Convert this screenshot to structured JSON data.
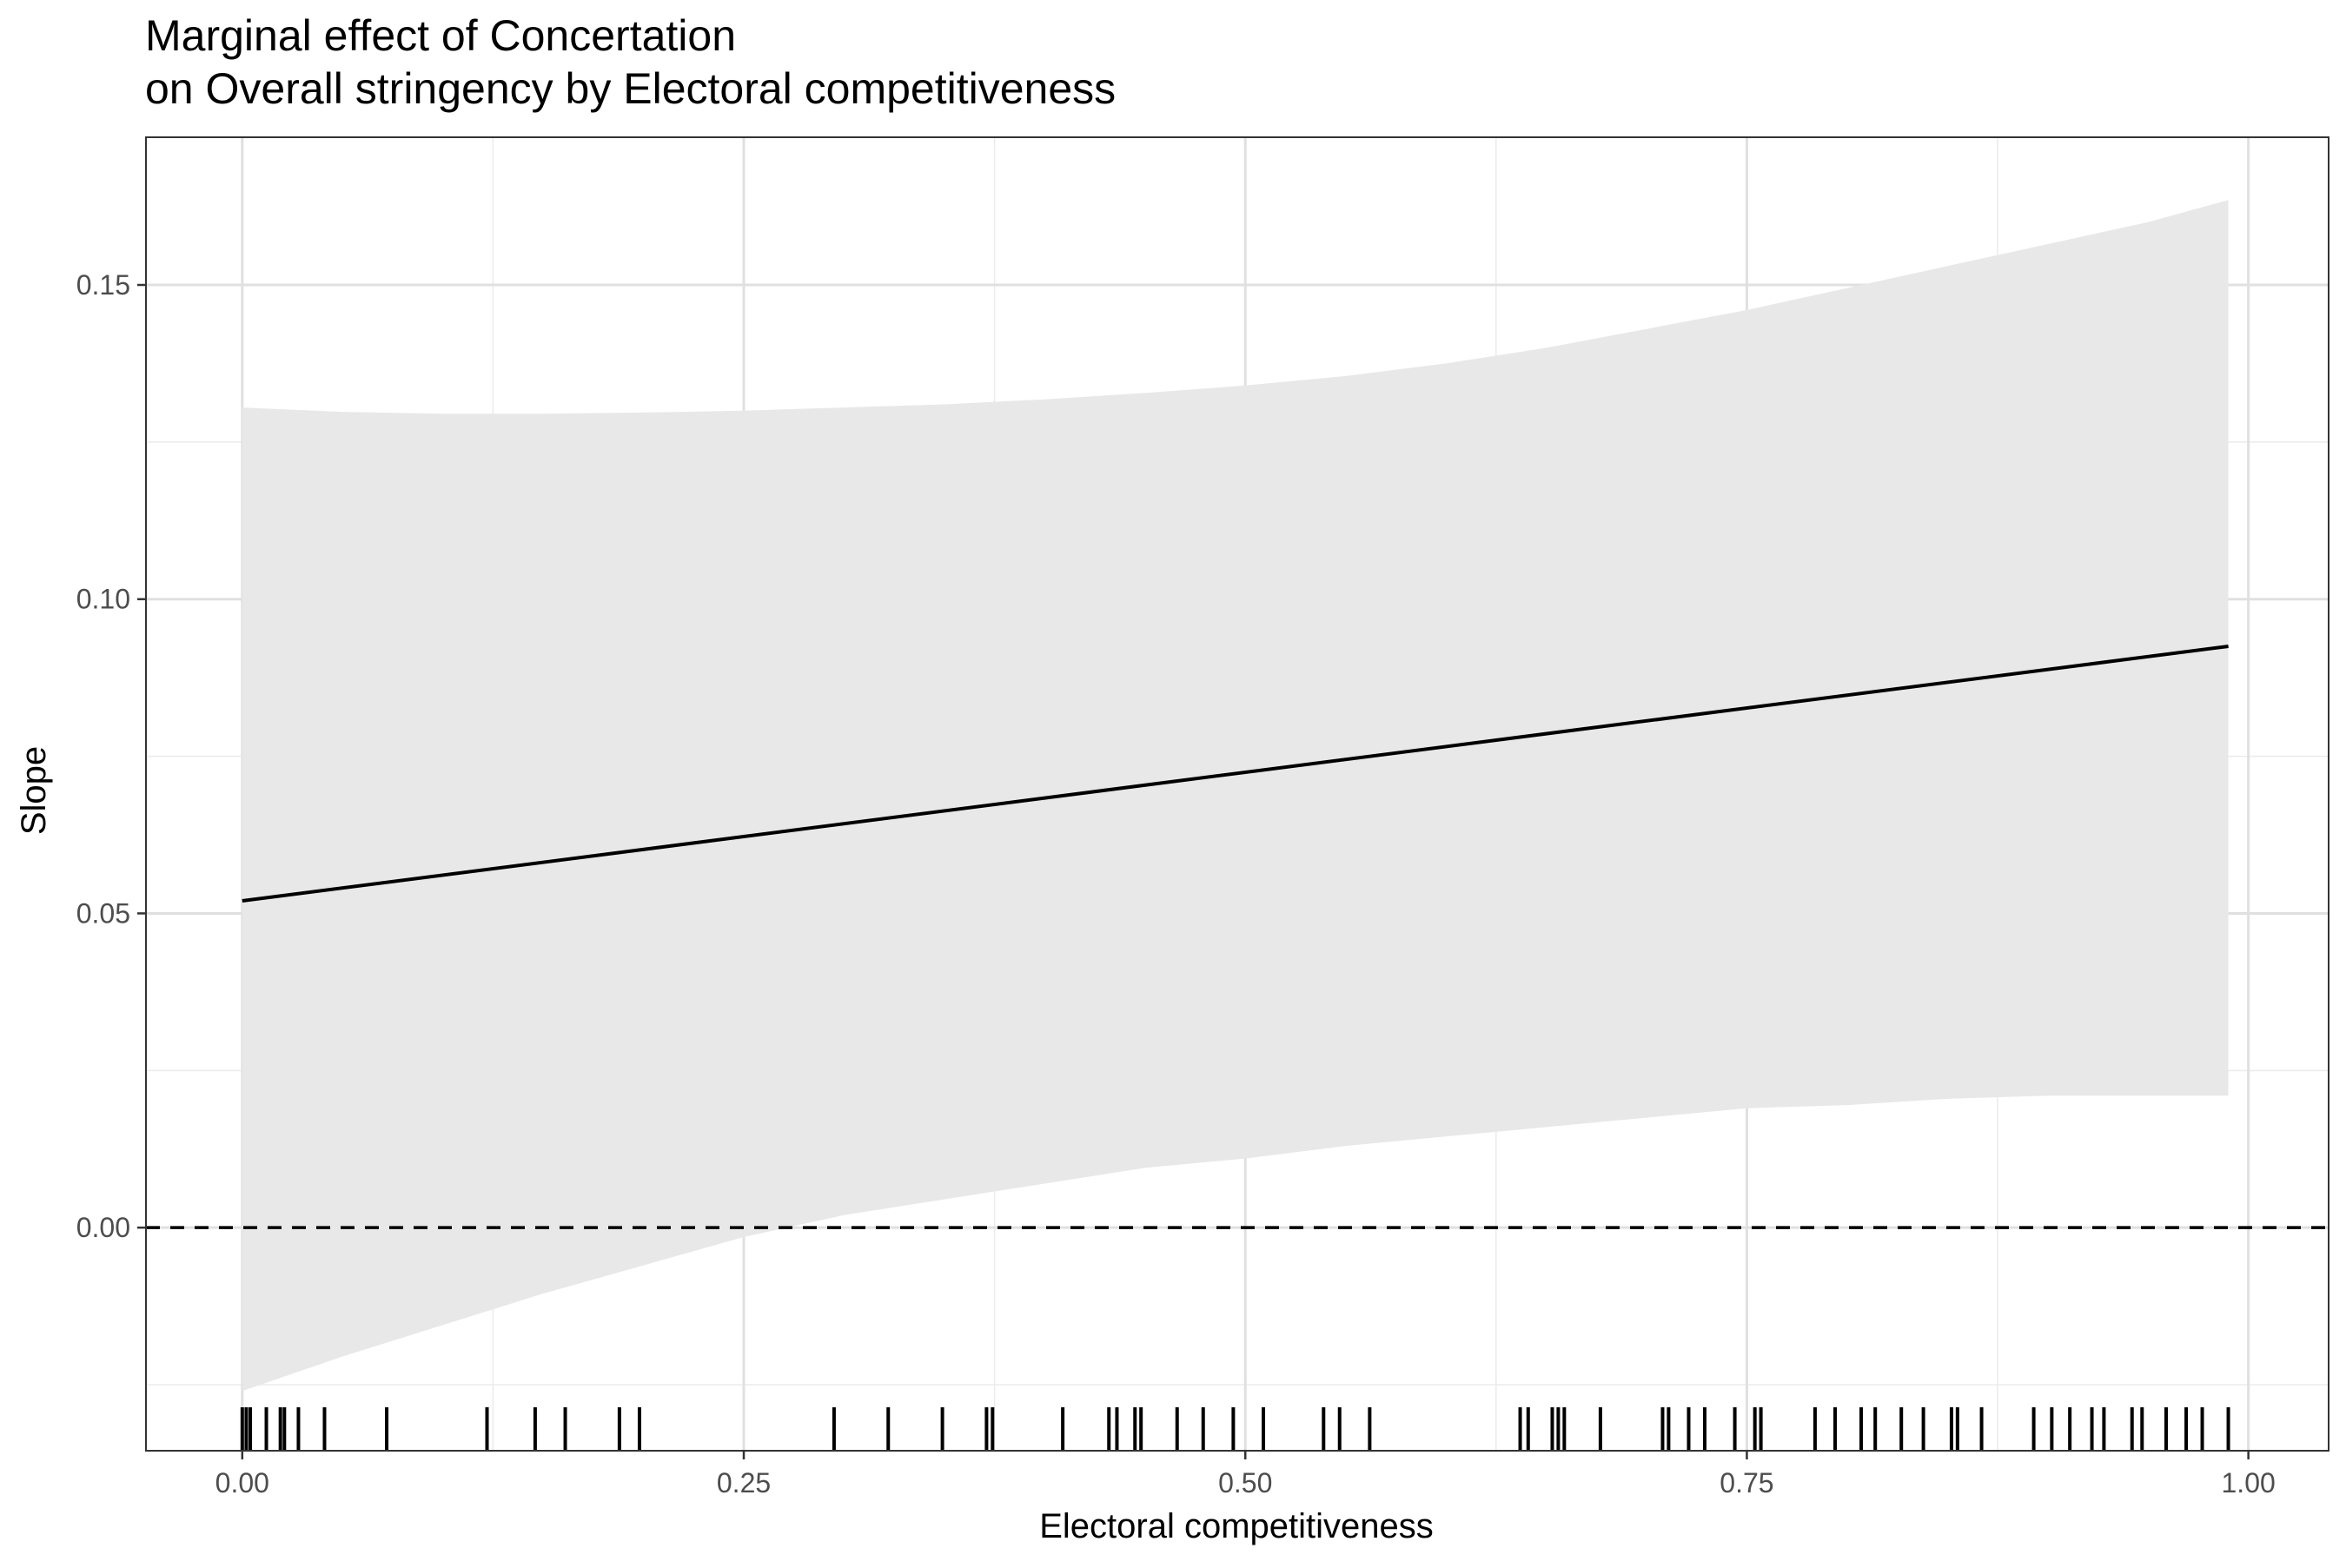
{
  "chart_data": {
    "type": "line",
    "title": "Marginal effect of Concertation",
    "subtitle": "on Overall stringency by Electoral competitiveness",
    "xlabel": "Electoral competitiveness",
    "ylabel": "Slope",
    "xlim": [
      -0.048,
      1.04
    ],
    "ylim": [
      -0.0355,
      0.1735
    ],
    "x_ticks": [
      {
        "value": 0.0,
        "label": "0.00"
      },
      {
        "value": 0.25,
        "label": "0.25"
      },
      {
        "value": 0.5,
        "label": "0.50"
      },
      {
        "value": 0.75,
        "label": "0.75"
      },
      {
        "value": 1.0,
        "label": "1.00"
      }
    ],
    "y_ticks": [
      {
        "value": 0.0,
        "label": "0.00"
      },
      {
        "value": 0.05,
        "label": "0.05"
      },
      {
        "value": 0.1,
        "label": "0.10"
      },
      {
        "value": 0.15,
        "label": "0.15"
      }
    ],
    "grid": true,
    "line": {
      "x": [
        0.0,
        0.99
      ],
      "y": [
        0.052,
        0.0925
      ]
    },
    "ribbon": {
      "x": [
        0.0,
        0.05,
        0.1,
        0.15,
        0.2,
        0.25,
        0.3,
        0.35,
        0.4,
        0.45,
        0.5,
        0.55,
        0.6,
        0.65,
        0.7,
        0.75,
        0.8,
        0.85,
        0.9,
        0.95,
        0.99
      ],
      "lower": [
        -0.026,
        -0.0205,
        -0.0155,
        -0.0105,
        -0.006,
        -0.0015,
        0.002,
        0.0045,
        0.007,
        0.0095,
        0.011,
        0.013,
        0.0145,
        0.016,
        0.0175,
        0.019,
        0.0195,
        0.0205,
        0.021,
        0.021,
        0.021
      ],
      "upper": [
        0.1305,
        0.1298,
        0.1295,
        0.1295,
        0.1297,
        0.13,
        0.1305,
        0.131,
        0.1318,
        0.1328,
        0.134,
        0.1355,
        0.1375,
        0.14,
        0.143,
        0.146,
        0.1495,
        0.153,
        0.1565,
        0.16,
        0.1635
      ]
    },
    "reference_line": {
      "y": 0,
      "style": "dashed"
    },
    "rug_x": [
      0.0,
      0.002,
      0.004,
      0.012,
      0.019,
      0.021,
      0.028,
      0.041,
      0.072,
      0.122,
      0.146,
      0.161,
      0.188,
      0.198,
      0.295,
      0.322,
      0.349,
      0.371,
      0.374,
      0.409,
      0.432,
      0.436,
      0.445,
      0.448,
      0.466,
      0.479,
      0.494,
      0.509,
      0.539,
      0.547,
      0.562,
      0.637,
      0.641,
      0.653,
      0.656,
      0.659,
      0.677,
      0.708,
      0.711,
      0.721,
      0.729,
      0.744,
      0.754,
      0.757,
      0.784,
      0.794,
      0.807,
      0.814,
      0.827,
      0.838,
      0.852,
      0.855,
      0.867,
      0.893,
      0.902,
      0.911,
      0.922,
      0.928,
      0.942,
      0.947,
      0.959,
      0.969,
      0.977,
      0.99
    ]
  }
}
